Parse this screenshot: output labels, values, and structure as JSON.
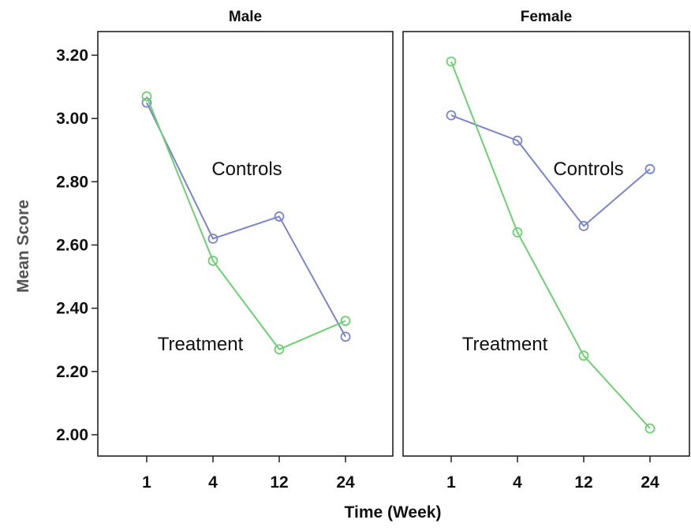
{
  "chart_data": {
    "type": "line",
    "ylabel": "Mean Score",
    "xlabel": "Time (Week)",
    "ylim": [
      2.0,
      3.2
    ],
    "yticks": [
      "2.00",
      "2.20",
      "2.40",
      "2.60",
      "2.80",
      "3.00",
      "3.20"
    ],
    "x": [
      "1",
      "4",
      "12",
      "24"
    ],
    "grid": false,
    "colors": {
      "Controls": "#7b84cc",
      "Treatment": "#6cd16f"
    },
    "panels": [
      {
        "title": "Male",
        "series": [
          {
            "name": "Controls",
            "values": [
              3.05,
              2.62,
              2.69,
              2.31
            ]
          },
          {
            "name": "Treatment",
            "values": [
              3.07,
              2.55,
              2.27,
              2.36
            ]
          }
        ]
      },
      {
        "title": "Female",
        "series": [
          {
            "name": "Controls",
            "values": [
              3.01,
              2.93,
              2.66,
              2.84
            ]
          },
          {
            "name": "Treatment",
            "values": [
              3.18,
              2.64,
              2.25,
              2.02
            ]
          }
        ]
      }
    ]
  }
}
